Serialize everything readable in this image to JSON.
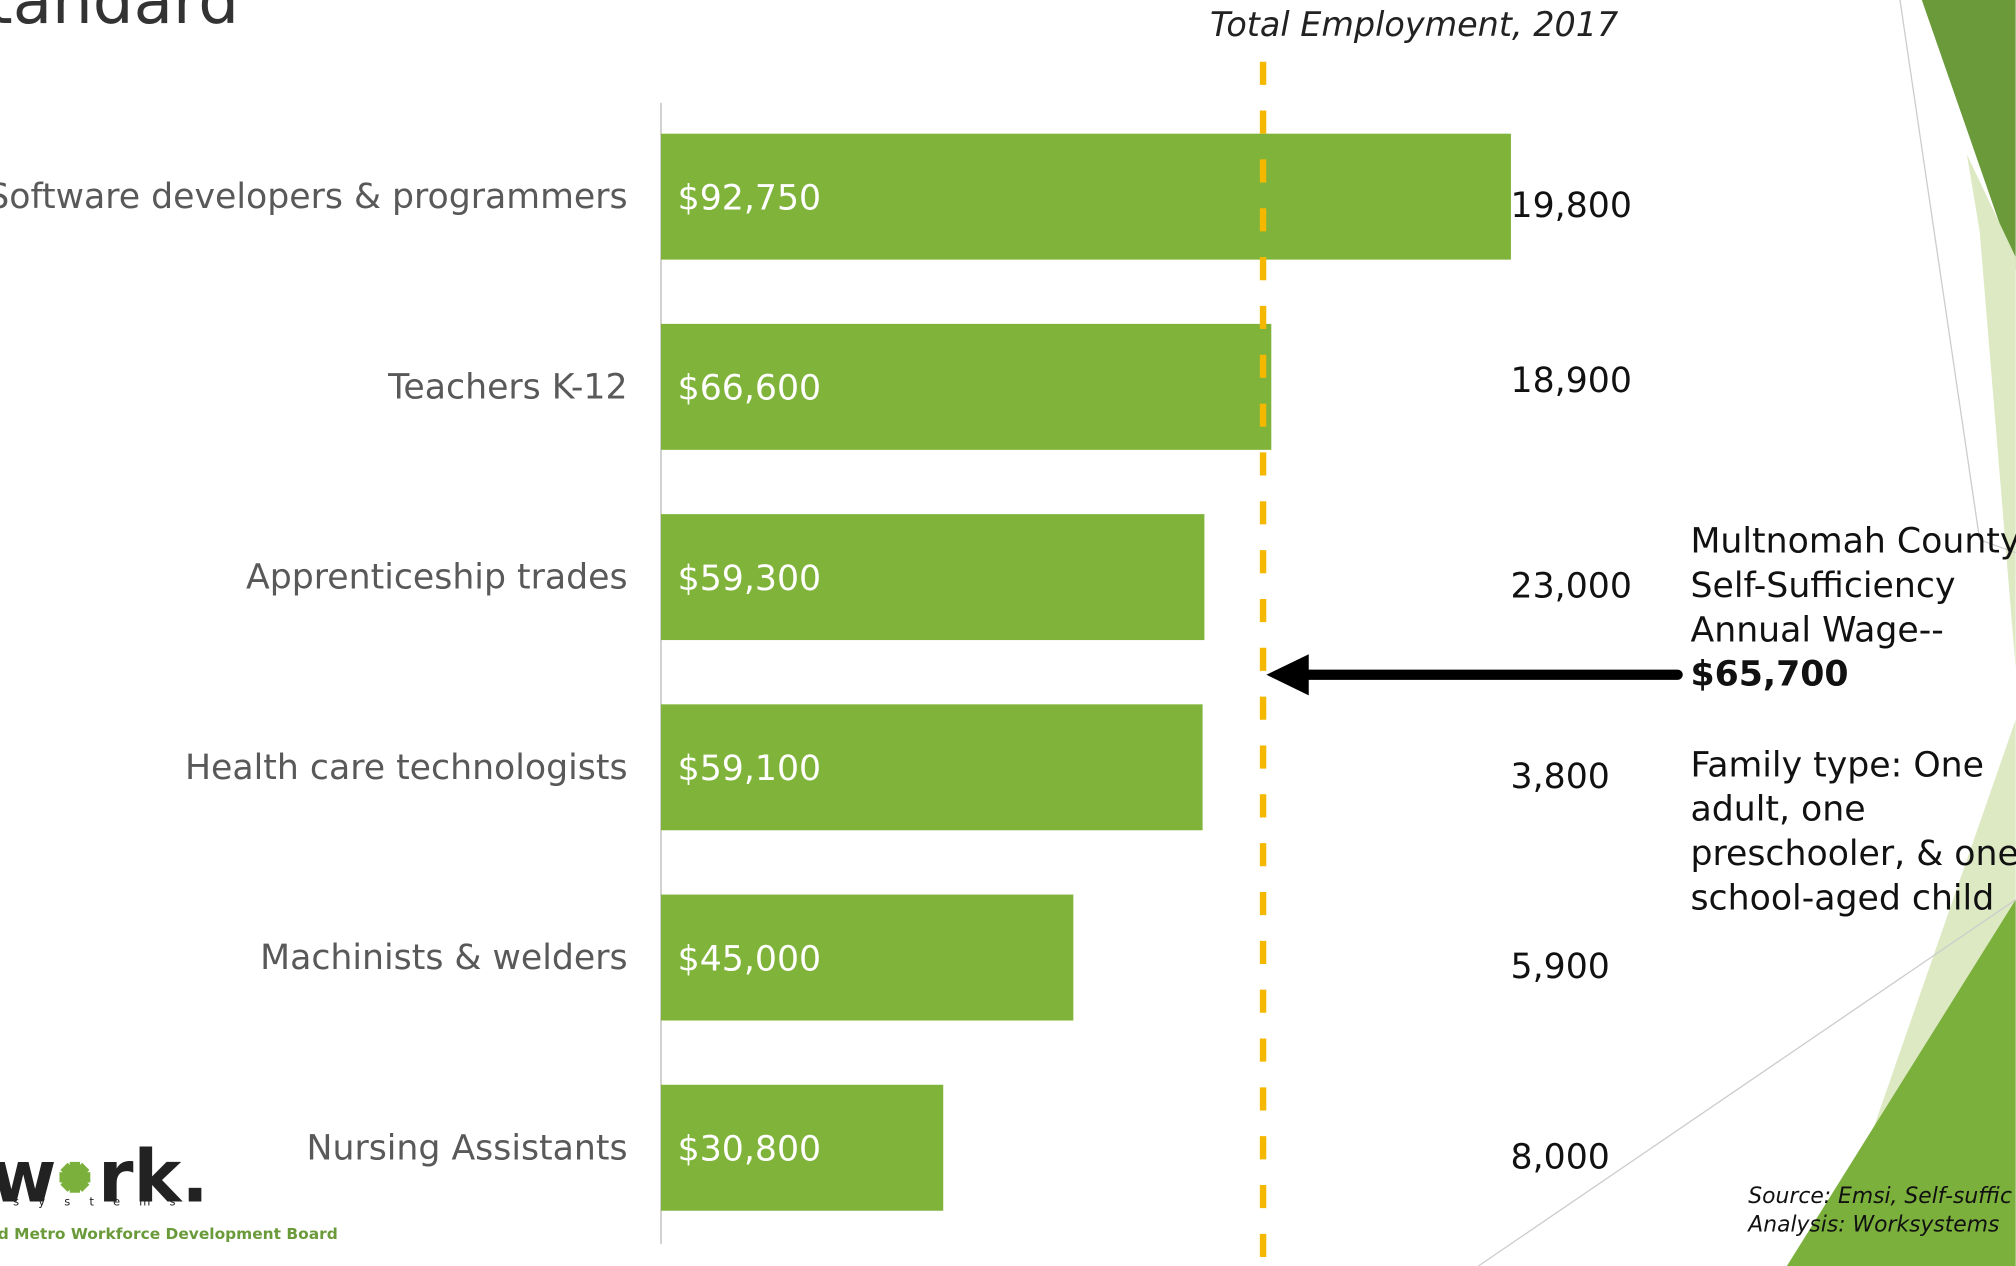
{
  "chart_data": {
    "type": "bar",
    "orientation": "horizontal",
    "title": "tandard",
    "categories": [
      "Software developers & programmers",
      "Teachers K-12",
      "Apprenticeship trades",
      "Health care technologists",
      "Machinists & welders",
      "Nursing Assistants"
    ],
    "values": [
      92750,
      66600,
      59300,
      59100,
      45000,
      30800
    ],
    "value_labels": [
      "$92,750",
      "$66,600",
      "$59,300",
      "$59,100",
      "$45,000",
      "$30,800"
    ],
    "color": "#80b33a",
    "xlim": [
      0,
      100000
    ],
    "employment": {
      "title": "Total Employment, 2017",
      "values": [
        19800,
        18900,
        23000,
        3800,
        5900,
        8000
      ],
      "value_labels": [
        "19,800",
        "18,900",
        "23,000",
        "3,800",
        "5,900",
        "8,000"
      ]
    },
    "reference_line": {
      "value": 65700,
      "color": "#f5b800",
      "label_lines": [
        "Multnomah County",
        "Self-Sufficiency",
        "Annual Wage--"
      ],
      "value_label": "$65,700",
      "note_lines": [
        "Family type: One",
        "adult, one",
        "preschooler, & one",
        "school-aged child"
      ]
    },
    "source_lines": [
      "Source: Emsi, Self-suffic",
      "Analysis: Worksystems"
    ],
    "logo": {
      "left": "w",
      "right": "rk.",
      "tagline": "s y s t e m s",
      "board": "d Metro Workforce Development Board"
    }
  }
}
